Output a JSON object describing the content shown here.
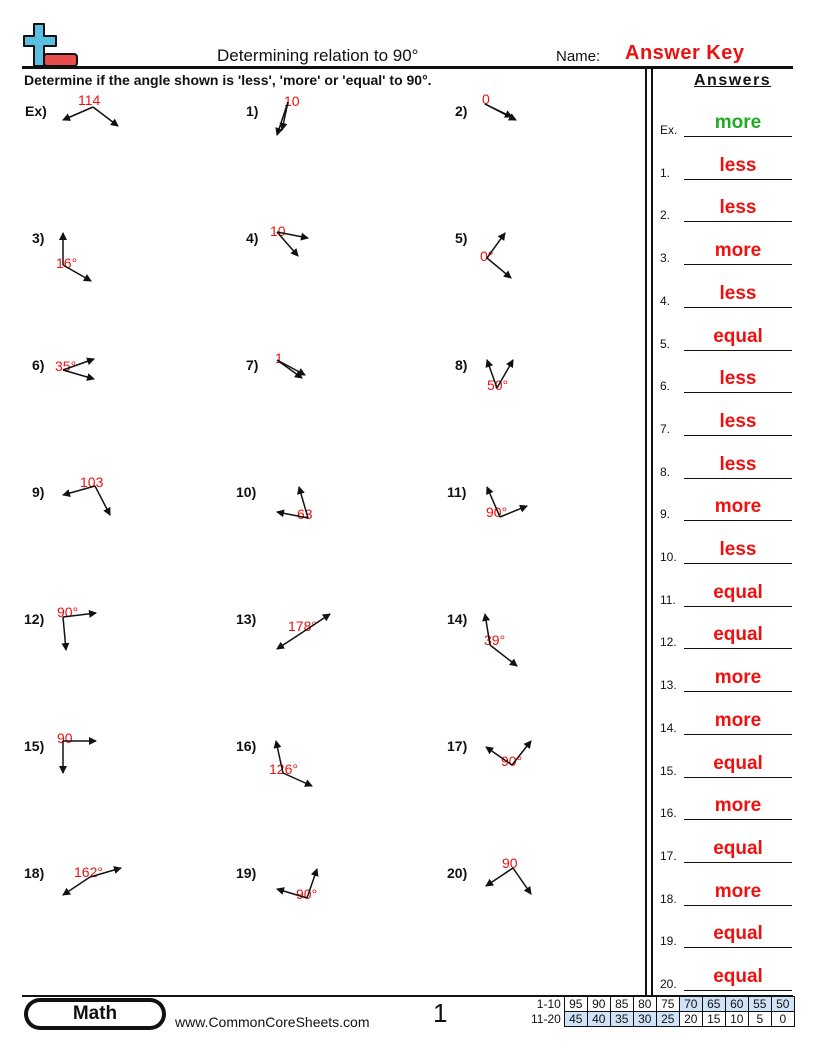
{
  "header": {
    "title": "Determining relation to 90°",
    "name_label": "Name:",
    "name_value": "Answer Key",
    "logo": "plus-minus-logo"
  },
  "instructions": "Determine if the angle shown is 'less', 'more' or 'equal' to 90°.",
  "answers_title": "Answers",
  "colors": {
    "answer": "#ee1111",
    "example_answer": "#22aa22",
    "logo_blue": "#5bbfe0",
    "logo_red": "#e84c4c",
    "score_highlight": "#cfe2f8"
  },
  "problems": [
    {
      "label": "Ex)",
      "angle_label": "114"
    },
    {
      "label": "1)",
      "angle_label": "10"
    },
    {
      "label": "2)",
      "angle_label": "0"
    },
    {
      "label": "3)",
      "angle_label": "16°"
    },
    {
      "label": "4)",
      "angle_label": "10"
    },
    {
      "label": "5)",
      "angle_label": "0°"
    },
    {
      "label": "6)",
      "angle_label": "35°"
    },
    {
      "label": "7)",
      "angle_label": "1"
    },
    {
      "label": "8)",
      "angle_label": "50°"
    },
    {
      "label": "9)",
      "angle_label": "103"
    },
    {
      "label": "10)",
      "angle_label": "63"
    },
    {
      "label": "11)",
      "angle_label": "90°"
    },
    {
      "label": "12)",
      "angle_label": "90°"
    },
    {
      "label": "13)",
      "angle_label": "178°"
    },
    {
      "label": "14)",
      "angle_label": "39°"
    },
    {
      "label": "15)",
      "angle_label": "90"
    },
    {
      "label": "16)",
      "angle_label": "126°"
    },
    {
      "label": "17)",
      "angle_label": "90°"
    },
    {
      "label": "18)",
      "angle_label": "162°"
    },
    {
      "label": "19)",
      "angle_label": "90°"
    },
    {
      "label": "20)",
      "angle_label": "90"
    }
  ],
  "answers": [
    {
      "label": "Ex.",
      "value": "more"
    },
    {
      "label": "1.",
      "value": "less"
    },
    {
      "label": "2.",
      "value": "less"
    },
    {
      "label": "3.",
      "value": "more"
    },
    {
      "label": "4.",
      "value": "less"
    },
    {
      "label": "5.",
      "value": "equal"
    },
    {
      "label": "6.",
      "value": "less"
    },
    {
      "label": "7.",
      "value": "less"
    },
    {
      "label": "8.",
      "value": "less"
    },
    {
      "label": "9.",
      "value": "more"
    },
    {
      "label": "10.",
      "value": "less"
    },
    {
      "label": "11.",
      "value": "equal"
    },
    {
      "label": "12.",
      "value": "equal"
    },
    {
      "label": "13.",
      "value": "more"
    },
    {
      "label": "14.",
      "value": "more"
    },
    {
      "label": "15.",
      "value": "equal"
    },
    {
      "label": "16.",
      "value": "more"
    },
    {
      "label": "17.",
      "value": "equal"
    },
    {
      "label": "18.",
      "value": "more"
    },
    {
      "label": "19.",
      "value": "equal"
    },
    {
      "label": "20.",
      "value": "equal"
    }
  ],
  "footer": {
    "subject": "Math",
    "url": "www.CommonCoreSheets.com",
    "page": "1"
  },
  "score_table": [
    {
      "range": "1-10",
      "scores": [
        "95",
        "90",
        "85",
        "80",
        "75",
        "70",
        "65",
        "60",
        "55",
        "50"
      ]
    },
    {
      "range": "11-20",
      "scores": [
        "45",
        "40",
        "35",
        "30",
        "25",
        "20",
        "15",
        "10",
        "5",
        "0"
      ]
    }
  ]
}
